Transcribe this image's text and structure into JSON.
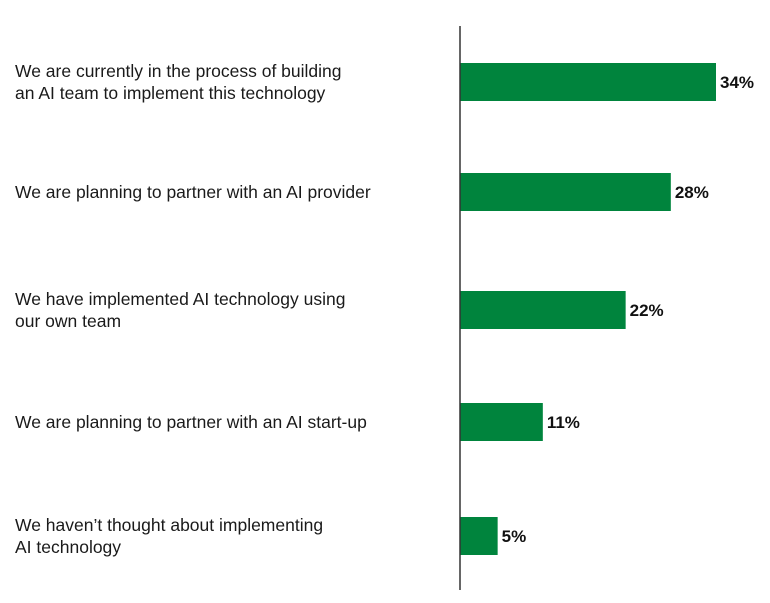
{
  "chart_data": {
    "type": "bar",
    "orientation": "horizontal",
    "categories": [
      [
        "We are currently in the process of building",
        "an AI team to implement this technology"
      ],
      [
        "We are planning to partner with an AI provider"
      ],
      [
        "We have implemented AI technology using",
        "our own team"
      ],
      [
        "We are planning to partner with an AI start-up"
      ],
      [
        "We haven’t thought about implementing",
        "AI technology"
      ]
    ],
    "values": [
      34,
      28,
      22,
      11,
      5
    ],
    "value_labels": [
      "34%",
      "28%",
      "22%",
      "11%",
      "5%"
    ],
    "unit": "%",
    "xlim": [
      0,
      34
    ],
    "bar_color": "#00843D",
    "axis_color": "#333333",
    "grid": false,
    "legend": "none"
  }
}
